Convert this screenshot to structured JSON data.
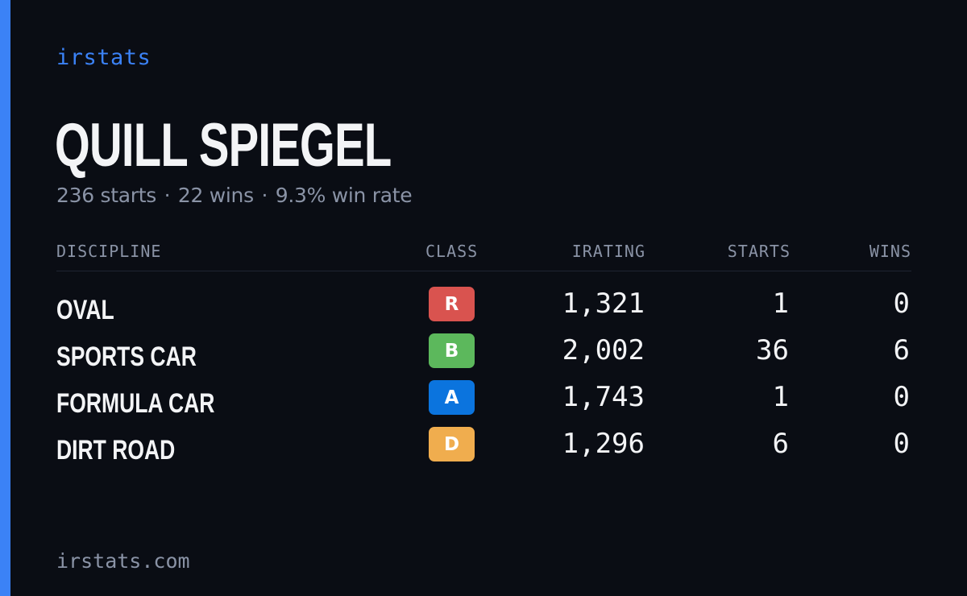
{
  "brand": "irstats",
  "driver": {
    "name": "QUILL SPIEGEL",
    "starts": "236 starts",
    "wins": "22 wins",
    "win_rate": "9.3% win rate",
    "separator": "·"
  },
  "table": {
    "headers": {
      "discipline": "DISCIPLINE",
      "class": "CLASS",
      "irating": "IRATING",
      "starts": "STARTS",
      "wins": "WINS"
    },
    "rows": [
      {
        "discipline": "OVAL",
        "class": "R",
        "class_color": "#d9534f",
        "irating": "1,321",
        "starts": "1",
        "wins": "0"
      },
      {
        "discipline": "SPORTS CAR",
        "class": "B",
        "class_color": "#5cb85c",
        "irating": "2,002",
        "starts": "36",
        "wins": "6"
      },
      {
        "discipline": "FORMULA CAR",
        "class": "A",
        "class_color": "#0b74de",
        "irating": "1,743",
        "starts": "1",
        "wins": "0"
      },
      {
        "discipline": "DIRT ROAD",
        "class": "D",
        "class_color": "#f0ad4e",
        "irating": "1,296",
        "starts": "6",
        "wins": "0"
      }
    ]
  },
  "footer": "irstats.com",
  "colors": {
    "accent": "#3b82f6",
    "background": "#0a0d14",
    "muted": "#8a93a6",
    "text": "#f3f4f6"
  }
}
